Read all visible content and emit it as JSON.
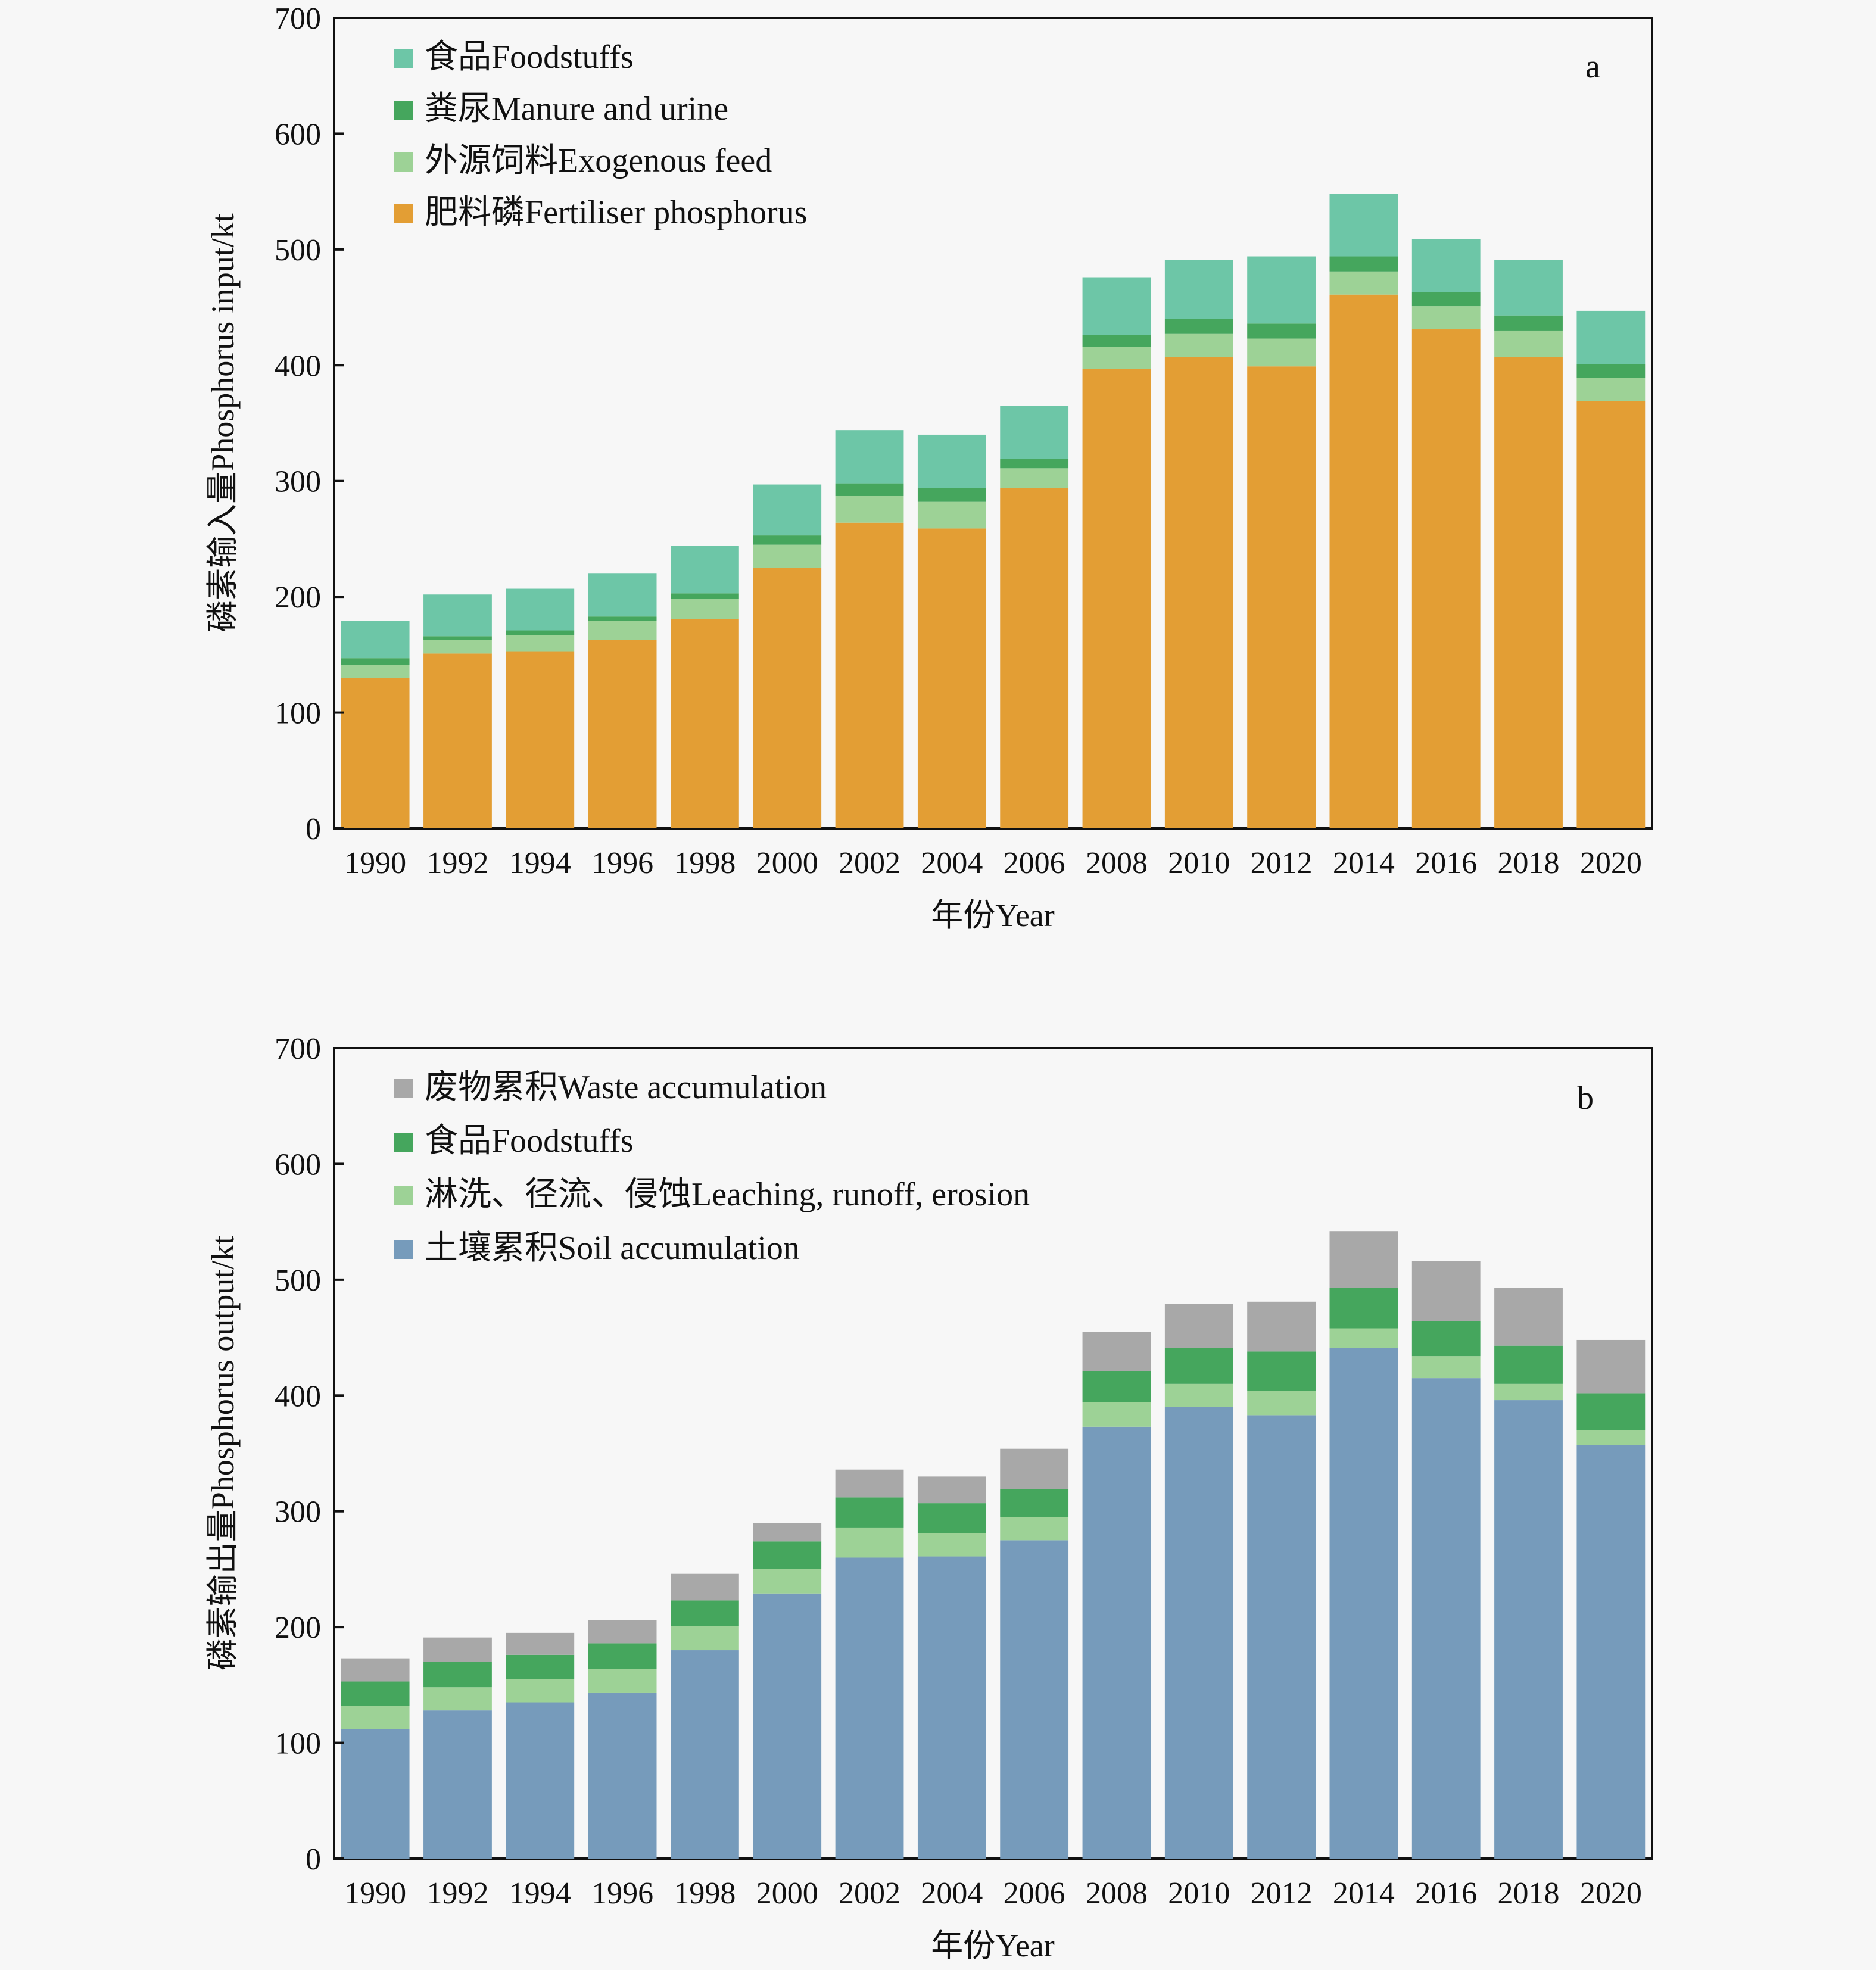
{
  "chart_data": [
    {
      "type": "bar",
      "stacked": true,
      "panel_label": "a",
      "title": "",
      "xlabel": "年份Year",
      "ylabel": "磷素输入量Phosphorus input/kt",
      "ylim": [
        0,
        700
      ],
      "yticks": [
        0,
        100,
        200,
        300,
        400,
        500,
        600,
        700
      ],
      "grid": false,
      "legend_position": "top-left",
      "categories": [
        "1990",
        "1992",
        "1994",
        "1996",
        "1998",
        "2000",
        "2002",
        "2004",
        "2006",
        "2008",
        "2010",
        "2012",
        "2014",
        "2016",
        "2018",
        "2020"
      ],
      "series": [
        {
          "name": "肥料磷Fertiliser phosphorus",
          "color": "#E39E34",
          "values": [
            130,
            151,
            153,
            163,
            181,
            225,
            264,
            259,
            294,
            397,
            407,
            399,
            461,
            431,
            407,
            369
          ]
        },
        {
          "name": "外源饲料Exogenous feed",
          "color": "#9DD296",
          "values": [
            11,
            12,
            14,
            16,
            17,
            20,
            23,
            23,
            17,
            19,
            20,
            24,
            20,
            20,
            23,
            20
          ]
        },
        {
          "name": "粪尿Manure and urine",
          "color": "#45A65D",
          "values": [
            6,
            3,
            4,
            4,
            5,
            8,
            11,
            12,
            8,
            10,
            13,
            13,
            13,
            12,
            13,
            12
          ]
        },
        {
          "name": "食品Foodstuffs",
          "color": "#6DC6A7",
          "values": [
            32,
            36,
            36,
            37,
            41,
            44,
            46,
            46,
            46,
            50,
            51,
            58,
            54,
            46,
            48,
            46
          ]
        }
      ],
      "legend_order": [
        "食品Foodstuffs",
        "粪尿Manure and urine",
        "外源饲料Exogenous feed",
        "肥料磷Fertiliser phosphorus"
      ]
    },
    {
      "type": "bar",
      "stacked": true,
      "panel_label": "b",
      "title": "",
      "xlabel": "年份Year",
      "ylabel": "磷素输出量Phosphorus output/kt",
      "ylim": [
        0,
        700
      ],
      "yticks": [
        0,
        100,
        200,
        300,
        400,
        500,
        600,
        700
      ],
      "grid": false,
      "legend_position": "top-left",
      "categories": [
        "1990",
        "1992",
        "1994",
        "1996",
        "1998",
        "2000",
        "2002",
        "2004",
        "2006",
        "2008",
        "2010",
        "2012",
        "2014",
        "2016",
        "2018",
        "2020"
      ],
      "series": [
        {
          "name": "土壤累积Soil accumulation",
          "color": "#769BBB",
          "values": [
            112,
            128,
            135,
            143,
            180,
            229,
            260,
            261,
            275,
            373,
            390,
            383,
            441,
            415,
            396,
            357
          ]
        },
        {
          "name": "淋洗、径流、侵蚀Leaching, runoff, erosion",
          "color": "#9DD296",
          "values": [
            20,
            20,
            20,
            21,
            21,
            21,
            26,
            20,
            20,
            21,
            20,
            21,
            17,
            19,
            14,
            13
          ]
        },
        {
          "name": "食品Foodstuffs",
          "color": "#45A65D",
          "values": [
            21,
            22,
            21,
            22,
            22,
            24,
            26,
            26,
            24,
            27,
            31,
            34,
            35,
            30,
            33,
            32
          ]
        },
        {
          "name": "废物累积Waste accumulation",
          "color": "#A8A8A8",
          "values": [
            20,
            21,
            19,
            20,
            23,
            16,
            24,
            23,
            35,
            34,
            38,
            43,
            49,
            52,
            50,
            46
          ]
        }
      ],
      "legend_order": [
        "废物累积Waste accumulation",
        "食品Foodstuffs",
        "淋洗、径流、侵蚀Leaching, runoff, erosion",
        "土壤累积Soil accumulation"
      ]
    }
  ]
}
